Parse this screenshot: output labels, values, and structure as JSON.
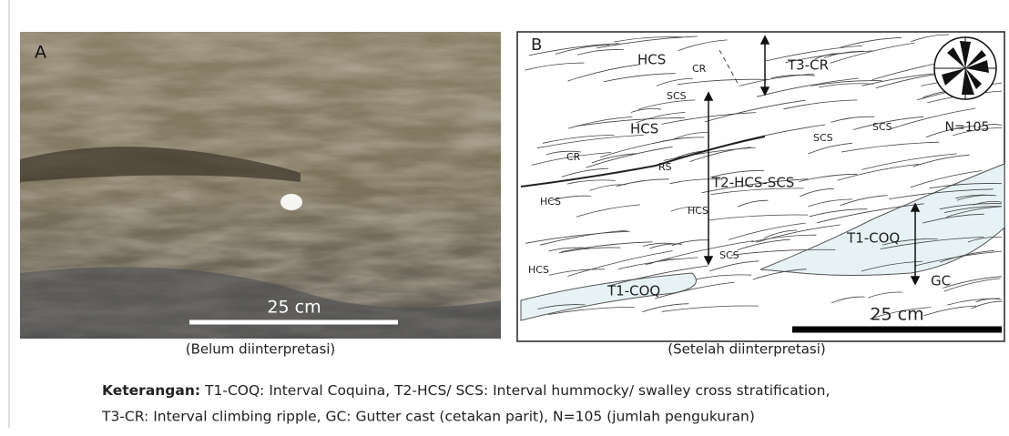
{
  "panel_a": {
    "label": "A",
    "scale_label": "25 cm",
    "caption": "(Belum diinterpretasi)"
  },
  "panel_b": {
    "label": "B",
    "structure_labels": [
      "HCS",
      "CR",
      "T3-CR",
      "SCS",
      "HCS",
      "SCS",
      "SCS",
      "CR",
      "RS",
      "T2-HCS-SCS",
      "HCS",
      "HCS",
      "T1-COQ",
      "SCS",
      "HCS",
      "GC",
      "T1-COQ"
    ],
    "count_label": "N=105",
    "scale_label": "25 cm",
    "caption": "(Setelah diinterpretasi)"
  },
  "legend": {
    "heading": "Keterangan:",
    "lines": [
      " T1-COQ: Interval Coquina, T2-HCS/ SCS: Interval hummocky/ swalley cross stratification,",
      "T3-CR: Interval climbing ripple, GC: Gutter cast (cetakan parit), N=105 (jumlah pengukuran)"
    ]
  }
}
